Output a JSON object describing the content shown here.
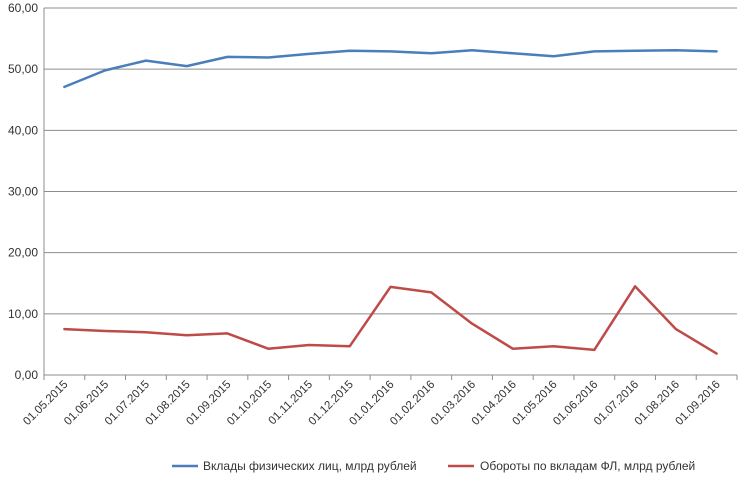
{
  "chart_data": {
    "type": "line",
    "categories": [
      "01.05.2015",
      "01.06.2015",
      "01.07.2015",
      "01.08.2015",
      "01.09.2015",
      "01.10.2015",
      "01.11.2015",
      "01.12.2015",
      "01.01.2016",
      "01.02.2016",
      "01.03.2016",
      "01.04.2016",
      "01.05.2016",
      "01.06.2016",
      "01.07.2016",
      "01.08.2016",
      "01.09.2016"
    ],
    "ylim": [
      0,
      60
    ],
    "yticks": [
      "0,00",
      "10,00",
      "20,00",
      "30,00",
      "40,00",
      "50,00",
      "60,00"
    ],
    "grid": true,
    "legend_position": "bottom",
    "series": [
      {
        "name": "Вклады физических лиц, млрд рублей",
        "color": "#4a7ebb",
        "values": [
          47.1,
          49.8,
          51.4,
          50.5,
          52.0,
          51.9,
          52.5,
          53.0,
          52.9,
          52.6,
          53.1,
          52.6,
          52.1,
          52.9,
          53.0,
          53.1,
          52.9
        ]
      },
      {
        "name": "Обороты по вкладам ФЛ, млрд рублей",
        "color": "#be4b48",
        "values": [
          7.5,
          7.2,
          7.0,
          6.5,
          6.8,
          4.3,
          4.9,
          4.7,
          14.4,
          13.5,
          8.4,
          4.3,
          4.7,
          4.1,
          14.5,
          7.5,
          3.5
        ]
      }
    ]
  }
}
